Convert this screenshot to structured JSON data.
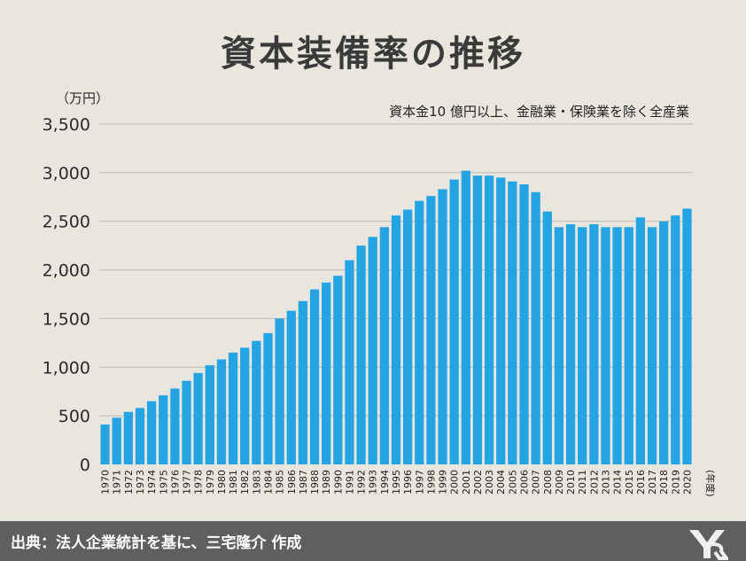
{
  "title": "資本装備率の推移",
  "unit_label": "（万円）",
  "subtitle": "資本金10 億円以上、金融業・保険業を除く全産業",
  "source": "出典：法人企業統計を基に、三宅隆介 作成",
  "colors": {
    "bar": "#25a4e4",
    "grid": "#bdbab4",
    "background": "#e9e6df",
    "footer": "#5f5f5f"
  },
  "chart_data": {
    "type": "bar",
    "title": "資本装備率の推移",
    "ylabel": "（万円）",
    "xlabel_suffix": "(年度)",
    "ylim": [
      0,
      3500
    ],
    "yticks": [
      0,
      500,
      1000,
      1500,
      2000,
      2500,
      3000,
      3500
    ],
    "ytick_labels": [
      "0",
      "500",
      "1,000",
      "1,500",
      "2,000",
      "2,500",
      "3,000",
      "3,500"
    ],
    "grid": true,
    "categories": [
      "1970",
      "1971",
      "1972",
      "1973",
      "1974",
      "1975",
      "1976",
      "1977",
      "1978",
      "1979",
      "1980",
      "1981",
      "1982",
      "1983",
      "1984",
      "1985",
      "1986",
      "1987",
      "1988",
      "1989",
      "1990",
      "1991",
      "1992",
      "1993",
      "1994",
      "1995",
      "1996",
      "1997",
      "1998",
      "1999",
      "2000",
      "2001",
      "2002",
      "2003",
      "2004",
      "2005",
      "2006",
      "2007",
      "2008",
      "2009",
      "2010",
      "2011",
      "2012",
      "2013",
      "2014",
      "2015",
      "2016",
      "2017",
      "2018",
      "2019",
      "2020"
    ],
    "values": [
      410,
      480,
      540,
      580,
      650,
      710,
      780,
      860,
      940,
      1020,
      1080,
      1150,
      1200,
      1270,
      1350,
      1500,
      1580,
      1680,
      1800,
      1870,
      1940,
      2100,
      2250,
      2340,
      2440,
      2560,
      2620,
      2710,
      2760,
      2830,
      2930,
      3020,
      2970,
      2970,
      2950,
      2910,
      2880,
      2800,
      2600,
      2440,
      2470,
      2440,
      2470,
      2440,
      2440,
      2440,
      2540,
      2440,
      2500,
      2560,
      2630
    ]
  }
}
